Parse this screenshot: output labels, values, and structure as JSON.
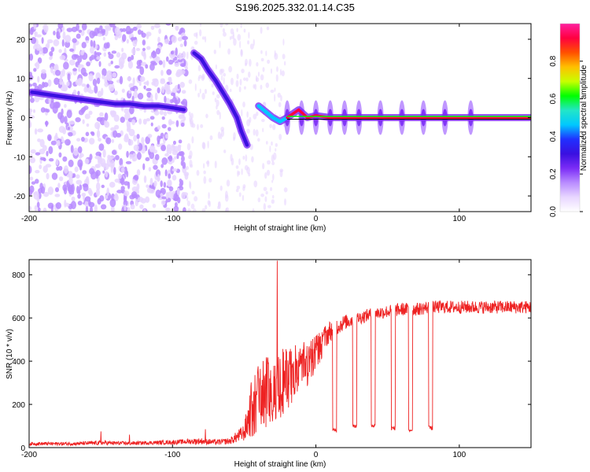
{
  "title": "S196.2025.332.01.14.C35",
  "colors": {
    "line": "#ee2222",
    "frame": "#000000",
    "colormap": [
      "#ffffff",
      "#e8d6ff",
      "#b98cff",
      "#7b2cf6",
      "#3a10e0",
      "#2030ff",
      "#00c8ff",
      "#22e6c8",
      "#00ff00",
      "#c8ff00",
      "#ffc000",
      "#ff5000",
      "#ff0040",
      "#ff20a0"
    ]
  },
  "chart_data": [
    {
      "type": "heatmap",
      "title": "",
      "xlabel": "Height of straight line (km)",
      "ylabel": "Frequency (Hz)",
      "xlim": [
        -200,
        150
      ],
      "ylim": [
        -24,
        24
      ],
      "xticks": [
        -200,
        -100,
        0,
        100
      ],
      "yticks": [
        -20,
        -10,
        0,
        10,
        20
      ],
      "colorbar": {
        "label": "Normalized spectral amplitude",
        "range": [
          0,
          1
        ],
        "ticks": [
          0.0,
          0.2,
          0.4,
          0.6,
          0.8
        ]
      },
      "ridge": {
        "name": "dominant frequency",
        "points": [
          [
            -198,
            6.5
          ],
          [
            -180,
            5.5
          ],
          [
            -170,
            5
          ],
          [
            -160,
            4.5
          ],
          [
            -150,
            4
          ],
          [
            -140,
            3.5
          ],
          [
            -130,
            3.5
          ],
          [
            -120,
            3
          ],
          [
            -110,
            3
          ],
          [
            -100,
            2.5
          ],
          [
            -92,
            2
          ],
          [
            -85,
            16.5
          ],
          [
            -80,
            15
          ],
          [
            -75,
            12
          ],
          [
            -70,
            9.5
          ],
          [
            -65,
            6.5
          ],
          [
            -60,
            3.5
          ],
          [
            -55,
            0
          ],
          [
            -52,
            -3.5
          ],
          [
            -48,
            -7
          ],
          [
            -40,
            3
          ],
          [
            -35,
            1.5
          ],
          [
            -30,
            0
          ],
          [
            -25,
            -1
          ],
          [
            -20,
            0
          ],
          [
            -12,
            2
          ],
          [
            -6,
            0
          ],
          [
            0,
            0.5
          ],
          [
            10,
            0
          ],
          [
            30,
            0
          ],
          [
            60,
            0
          ],
          [
            100,
            0
          ],
          [
            150,
            0
          ]
        ]
      },
      "features": [
        {
          "x_from": -200,
          "x_to": -90,
          "kind": "scattered noise",
          "amplitude": 0.15
        },
        {
          "x_from": -85,
          "x_to": -60,
          "kind": "descending chirp",
          "amplitude": 0.35
        },
        {
          "x_from": -20,
          "x_to": 150,
          "kind": "steady tone near 0 Hz",
          "amplitude": 0.95
        }
      ]
    },
    {
      "type": "line",
      "title": "",
      "xlabel": "Height of straight line (km)",
      "ylabel": "SNR (10 * v/v)",
      "xlim": [
        -200,
        150
      ],
      "ylim": [
        0,
        870
      ],
      "xticks": [
        -200,
        -100,
        0,
        100
      ],
      "yticks": [
        0,
        200,
        400,
        600,
        800
      ],
      "series": [
        {
          "name": "SNR",
          "envelope": {
            "x": [
              -200,
              -170,
              -150,
              -130,
              -100,
              -90,
              -80,
              -70,
              -60,
              -50,
              -45,
              -40,
              -35,
              -30,
              -25,
              -20,
              -15,
              -10,
              -5,
              0,
              5,
              10,
              15,
              20,
              30,
              40,
              50,
              60,
              70,
              80,
              90,
              100,
              110,
              120,
              130,
              140,
              150
            ],
            "mid": [
              18,
              18,
              22,
              20,
              25,
              28,
              30,
              25,
              30,
              70,
              180,
              280,
              300,
              320,
              330,
              360,
              380,
              400,
              420,
              460,
              500,
              540,
              560,
              580,
              600,
              620,
              630,
              640,
              640,
              650,
              650,
              650,
              650,
              650,
              650,
              650,
              650
            ],
            "spread": [
              8,
              8,
              10,
              8,
              10,
              12,
              15,
              12,
              15,
              40,
              130,
              150,
              160,
              160,
              150,
              140,
              130,
              120,
              100,
              80,
              60,
              50,
              40,
              35,
              30,
              30,
              30,
              30,
              30,
              30,
              30,
              30,
              30,
              30,
              30,
              30,
              30
            ]
          },
          "spikes": [
            [
              -27,
              865
            ],
            [
              -150,
              75
            ],
            [
              -130,
              60
            ],
            [
              -77,
              85
            ]
          ],
          "dips": [
            [
              13,
              70
            ],
            [
              27,
              90
            ],
            [
              40,
              90
            ],
            [
              54,
              80
            ],
            [
              66,
              70
            ],
            [
              80,
              80
            ]
          ]
        }
      ]
    }
  ]
}
